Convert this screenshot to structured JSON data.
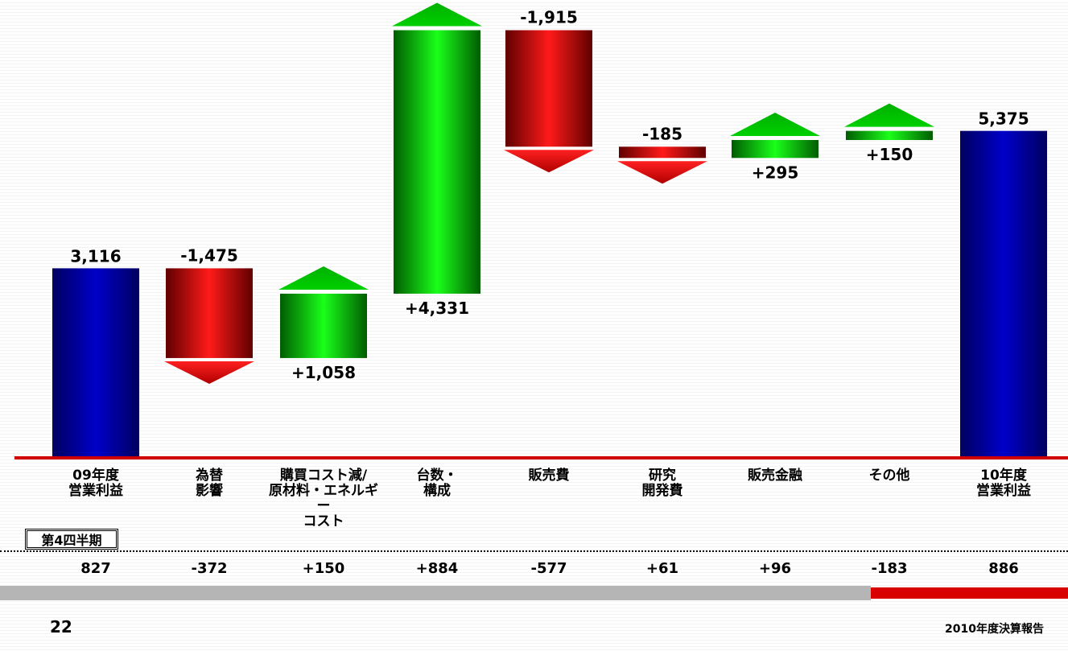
{
  "chart_data": {
    "type": "waterfall",
    "categories": [
      "09年度\n営業利益",
      "為替\n影響",
      "購買コスト減/\n原材料・エネルギー\nコスト",
      "台数・\n構成",
      "販売費",
      "研究\n開発費",
      "販売金融",
      "その他",
      "10年度\n営業利益"
    ],
    "values": [
      3116,
      -1475,
      1058,
      4331,
      -1915,
      -185,
      295,
      150,
      5375
    ],
    "kinds": [
      "total",
      "delta",
      "delta",
      "delta",
      "delta",
      "delta",
      "delta",
      "delta",
      "total"
    ],
    "value_labels": [
      "3,116",
      "-1,475",
      "+1,058",
      "+4,331",
      "-1,915",
      "-185",
      "+295",
      "+150",
      "5,375"
    ],
    "colors": {
      "total": "#0000a8",
      "increase": "#00cc00",
      "decrease": "#d60000",
      "baseline": "#d00000"
    }
  },
  "quarter": {
    "title": "第4四半期",
    "values": [
      "827",
      "-372",
      "+150",
      "+884",
      "-577",
      "+61",
      "+96",
      "-183",
      "886"
    ]
  },
  "footer": {
    "page_number": "22",
    "report_title": "2010年度決算報告"
  }
}
